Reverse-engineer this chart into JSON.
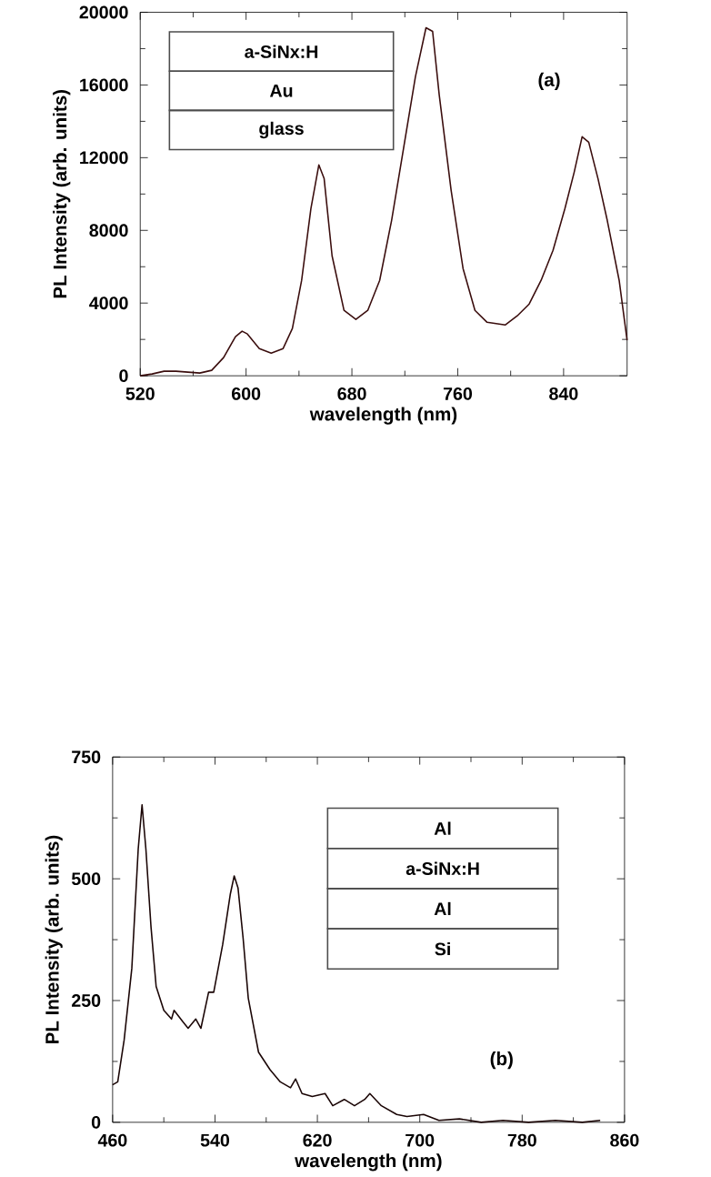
{
  "chart_data": [
    {
      "type": "line",
      "xlabel": "wavelength (nm)",
      "ylabel": "PL Intensity (arb. units)",
      "annotations": [
        "(a)",
        "a-SiNx:H",
        "Au",
        "glass"
      ],
      "xlim": [
        520,
        888
      ],
      "ylim": [
        0,
        20000
      ],
      "xticks": [
        520,
        600,
        680,
        760,
        840
      ],
      "yticks": [
        0,
        4000,
        8000,
        12000,
        16000,
        20000
      ],
      "marker": "none",
      "line_style": "solid",
      "series": [
        {
          "color": "#3a0d0d",
          "x": [
            520,
            529,
            538,
            547,
            565,
            574,
            583,
            592,
            597,
            601,
            610,
            619,
            628,
            635,
            642,
            649,
            655,
            659,
            665,
            674,
            683,
            692,
            701,
            710,
            719,
            728,
            736,
            741,
            746,
            755,
            764,
            773,
            782,
            796,
            805,
            814,
            823,
            832,
            841,
            848,
            854,
            859,
            866,
            873,
            882,
            888
          ],
          "values": [
            0,
            100,
            250,
            250,
            150,
            300,
            1000,
            2150,
            2450,
            2300,
            1500,
            1250,
            1500,
            2600,
            5250,
            9200,
            11600,
            10850,
            6600,
            3600,
            3100,
            3600,
            5250,
            8550,
            12500,
            16450,
            19150,
            18950,
            15450,
            10200,
            5900,
            3600,
            2950,
            2800,
            3300,
            3950,
            5250,
            6900,
            9200,
            11200,
            13150,
            12850,
            10850,
            8550,
            5250,
            1950
          ]
        }
      ]
    },
    {
      "type": "line",
      "xlabel": "wavelength (nm)",
      "ylabel": "PL Intensity (arb. units)",
      "annotations": [
        "(b)",
        "Al",
        "a-SiNx:H",
        "Al",
        "Si"
      ],
      "xlim": [
        460,
        860
      ],
      "ylim": [
        0,
        750
      ],
      "xticks": [
        460,
        540,
        620,
        700,
        780,
        860
      ],
      "yticks": [
        0,
        250,
        500,
        750
      ],
      "marker": "none",
      "line_style": "solid",
      "series": [
        {
          "color": "#1a0505",
          "x": [
            460,
            464,
            469,
            475,
            480,
            483,
            486,
            490,
            494,
            500,
            506,
            508,
            515,
            519,
            525,
            529,
            535,
            539,
            546,
            552,
            555,
            558,
            562,
            566,
            574,
            583,
            591,
            599,
            603,
            608,
            616,
            626,
            632,
            641,
            649,
            657,
            661,
            670,
            682,
            690,
            703,
            715,
            731,
            748,
            765,
            785,
            806,
            827,
            841
          ],
          "values": [
            77,
            83,
            169,
            316,
            561,
            652,
            561,
            401,
            279,
            230,
            212,
            230,
            206,
            193,
            212,
            193,
            267,
            267,
            365,
            469,
            506,
            481,
            377,
            255,
            144,
            108,
            83,
            71,
            89,
            59,
            53,
            59,
            34,
            47,
            34,
            47,
            59,
            34,
            16,
            12,
            16,
            4,
            7,
            0,
            4,
            0,
            4,
            0,
            4
          ]
        }
      ]
    }
  ]
}
